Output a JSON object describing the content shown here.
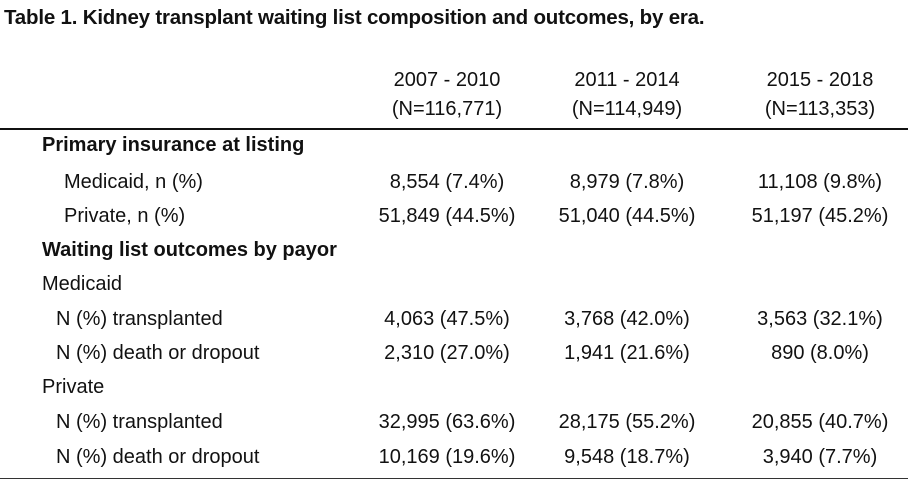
{
  "title": "Table 1. Kidney transplant waiting list composition and outcomes, by era.",
  "columns": [
    {
      "era": "2007 - 2010",
      "n": "(N=116,771)"
    },
    {
      "era": "2011 - 2014",
      "n": "(N=114,949)"
    },
    {
      "era": "2015 - 2018",
      "n": "(N=113,353)"
    }
  ],
  "rows": [
    {
      "label": "Primary insurance at listing",
      "values": [
        "",
        "",
        ""
      ]
    },
    {
      "label": "Medicaid, n (%)",
      "values": [
        "8,554 (7.4%)",
        "8,979 (7.8%)",
        "11,108 (9.8%)"
      ]
    },
    {
      "label": "Private, n (%)",
      "values": [
        "51,849 (44.5%)",
        "51,040 (44.5%)",
        "51,197 (45.2%)"
      ]
    },
    {
      "label": "Waiting list outcomes by payor",
      "values": [
        "",
        "",
        ""
      ]
    },
    {
      "label": "Medicaid",
      "values": [
        "",
        "",
        ""
      ]
    },
    {
      "label": "N (%) transplanted",
      "values": [
        "4,063 (47.5%)",
        "3,768 (42.0%)",
        "3,563 (32.1%)"
      ]
    },
    {
      "label": "N (%) death or dropout",
      "values": [
        "2,310 (27.0%)",
        "1,941 (21.6%)",
        "890 (8.0%)"
      ]
    },
    {
      "label": "Private",
      "values": [
        "",
        "",
        ""
      ]
    },
    {
      "label": "N (%) transplanted",
      "values": [
        "32,995 (63.6%)",
        "28,175 (55.2%)",
        "20,855 (40.7%)"
      ]
    },
    {
      "label": "N (%) death or dropout",
      "values": [
        "10,169 (19.6%)",
        "9,548 (18.7%)",
        "3,940 (7.7%)"
      ]
    }
  ]
}
